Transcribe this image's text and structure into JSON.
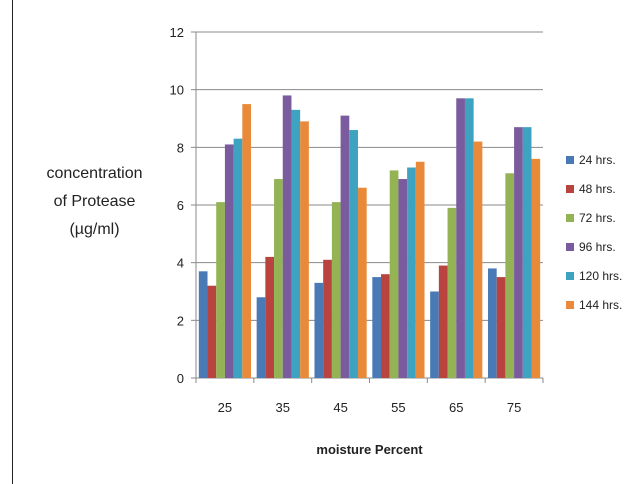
{
  "chart_data": {
    "type": "bar",
    "categories": [
      "25",
      "35",
      "45",
      "55",
      "65",
      "75"
    ],
    "series": [
      {
        "name": "24 hrs.",
        "color": "#4a7ab5",
        "values": [
          3.7,
          2.8,
          3.3,
          3.5,
          3.0,
          3.8
        ]
      },
      {
        "name": "48 hrs.",
        "color": "#b9433f",
        "values": [
          3.2,
          4.2,
          4.1,
          3.6,
          3.9,
          3.5
        ]
      },
      {
        "name": "72 hrs.",
        "color": "#93b355",
        "values": [
          6.1,
          6.9,
          6.1,
          7.2,
          5.9,
          7.1
        ]
      },
      {
        "name": "96 hrs.",
        "color": "#7a5c9e",
        "values": [
          8.1,
          9.8,
          9.1,
          6.9,
          9.7,
          8.7
        ]
      },
      {
        "name": "120 hrs.",
        "color": "#3ea3c1",
        "values": [
          8.3,
          9.3,
          8.6,
          7.3,
          9.7,
          8.7
        ]
      },
      {
        "name": "144 hrs.",
        "color": "#e88a3a",
        "values": [
          9.5,
          8.9,
          6.6,
          7.5,
          8.2,
          7.6
        ]
      }
    ],
    "ylim": [
      0,
      12
    ],
    "yticks": [
      "0",
      "2",
      "4",
      "6",
      "8",
      "10",
      "12"
    ],
    "ylabel_lines": [
      "concentration",
      "of Protease",
      "(µg/ml)"
    ],
    "xlabel": "moisture  Percent",
    "grid": true,
    "legend": "right"
  }
}
